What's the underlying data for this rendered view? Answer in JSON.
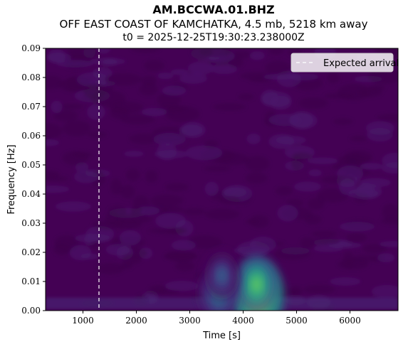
{
  "chart_data": {
    "type": "heatmap",
    "title": "AM.BCCWA.01.BHZ",
    "subtitle": "OFF EAST COAST OF KAMCHATKA, 4.5 mb, 5218 km away",
    "subtitle2": "t0 = 2025-12-25T19:30:23.238000Z",
    "xlabel": "Time [s]",
    "ylabel": "Frequency [Hz]",
    "xlim": [
      300,
      6900
    ],
    "ylim": [
      0.0,
      0.09
    ],
    "x_ticks": [
      1000,
      2000,
      3000,
      4000,
      5000,
      6000
    ],
    "y_ticks": [
      0.0,
      0.01,
      0.02,
      0.03,
      0.04,
      0.05,
      0.06,
      0.07,
      0.08,
      0.09
    ],
    "x_tick_labels": [
      "1000",
      "2000",
      "3000",
      "4000",
      "5000",
      "6000"
    ],
    "y_tick_labels": [
      "0.00",
      "0.01",
      "0.02",
      "0.03",
      "0.04",
      "0.05",
      "0.06",
      "0.07",
      "0.08",
      "0.09"
    ],
    "colormap": "viridis",
    "background_color": "#440154",
    "expected_arrival": {
      "time": 1300,
      "label": "Expected arrival",
      "style": "dashed",
      "color": "#ffffff"
    },
    "legend_position": "top-right",
    "energy_peaks": [
      {
        "time": 4270,
        "frequency": 0.005,
        "relative_amplitude": 1.0
      },
      {
        "time": 4250,
        "frequency": 0.009,
        "relative_amplitude": 0.55
      },
      {
        "time": 3550,
        "frequency": 0.006,
        "relative_amplitude": 0.4
      },
      {
        "time": 3600,
        "frequency": 0.012,
        "relative_amplitude": 0.25
      }
    ]
  }
}
